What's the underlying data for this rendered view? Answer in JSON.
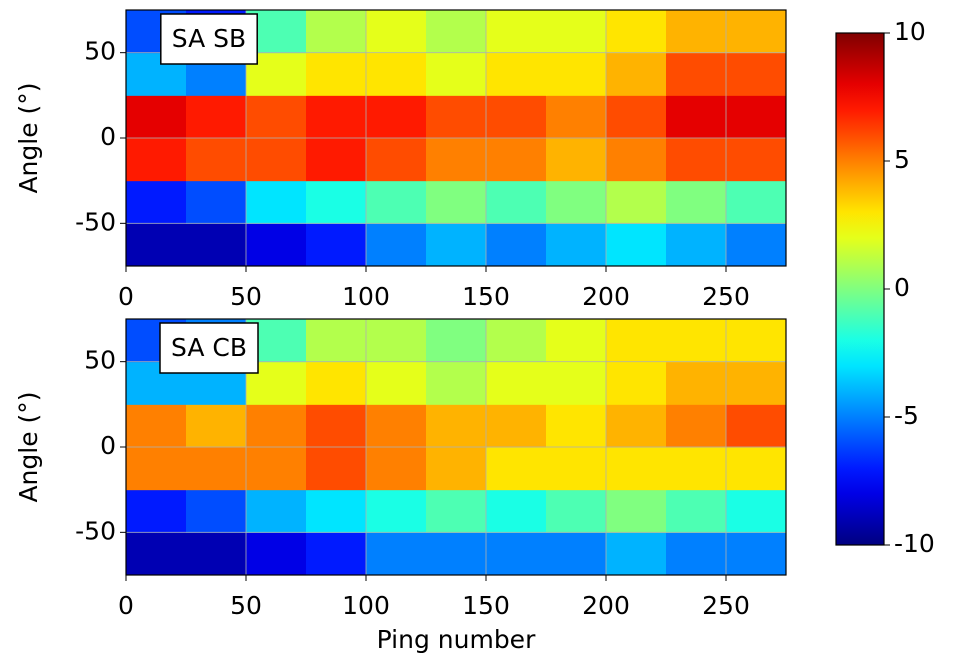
{
  "chart_data": [
    {
      "type": "heatmap",
      "label": "SA SB",
      "ylabel": "Angle (°)",
      "xlim": [
        0,
        275
      ],
      "ylim": [
        -75,
        75
      ],
      "xticks": [
        0,
        50,
        100,
        150,
        200,
        250
      ],
      "yticks": [
        -50,
        0,
        50
      ],
      "grid": true,
      "xbins": [
        0,
        25,
        50,
        75,
        100,
        125,
        150,
        175,
        200,
        225,
        250,
        275
      ],
      "ybins": [
        -75,
        -50,
        -25,
        0,
        25,
        50,
        75
      ],
      "z": [
        [
          -9,
          -9,
          -8,
          -7,
          -5,
          -4,
          -5,
          -4,
          -3,
          -4,
          -5
        ],
        [
          -7,
          -6,
          -3,
          -2,
          -1,
          0,
          -1,
          0,
          1,
          0,
          -1
        ],
        [
          7,
          6,
          6,
          7,
          6,
          5,
          5,
          4,
          5,
          6,
          6
        ],
        [
          8,
          7,
          6,
          7,
          7,
          6,
          6,
          5,
          6,
          8,
          8
        ],
        [
          -4,
          -5,
          2,
          3,
          3,
          2,
          3,
          3,
          4,
          6,
          6
        ],
        [
          -6,
          -7,
          -1,
          1,
          2,
          1,
          2,
          2,
          3,
          4,
          4
        ]
      ]
    },
    {
      "type": "heatmap",
      "label": "SA CB",
      "ylabel": "Angle (°)",
      "xlabel": "Ping number",
      "xlim": [
        0,
        275
      ],
      "ylim": [
        -75,
        75
      ],
      "xticks": [
        0,
        50,
        100,
        150,
        200,
        250
      ],
      "yticks": [
        -50,
        0,
        50
      ],
      "grid": true,
      "xbins": [
        0,
        25,
        50,
        75,
        100,
        125,
        150,
        175,
        200,
        225,
        250,
        275
      ],
      "ybins": [
        -75,
        -50,
        -25,
        0,
        25,
        50,
        75
      ],
      "z": [
        [
          -9,
          -9,
          -8,
          -7,
          -5,
          -5,
          -5,
          -5,
          -4,
          -5,
          -5
        ],
        [
          -7,
          -6,
          -4,
          -3,
          -2,
          -1,
          -2,
          -1,
          0,
          -1,
          -2
        ],
        [
          5,
          5,
          5,
          6,
          5,
          4,
          3,
          3,
          3,
          3,
          3
        ],
        [
          5,
          4,
          5,
          6,
          5,
          4,
          4,
          3,
          4,
          5,
          6
        ],
        [
          -4,
          -4,
          2,
          3,
          2,
          1,
          2,
          2,
          3,
          4,
          4
        ],
        [
          -6,
          -5,
          -1,
          1,
          1,
          0,
          1,
          2,
          3,
          3,
          3
        ]
      ]
    }
  ],
  "colorbar": {
    "colormap": "jet",
    "lim": [
      -10,
      10
    ],
    "ticks": [
      -10,
      -5,
      0,
      5,
      10
    ]
  }
}
